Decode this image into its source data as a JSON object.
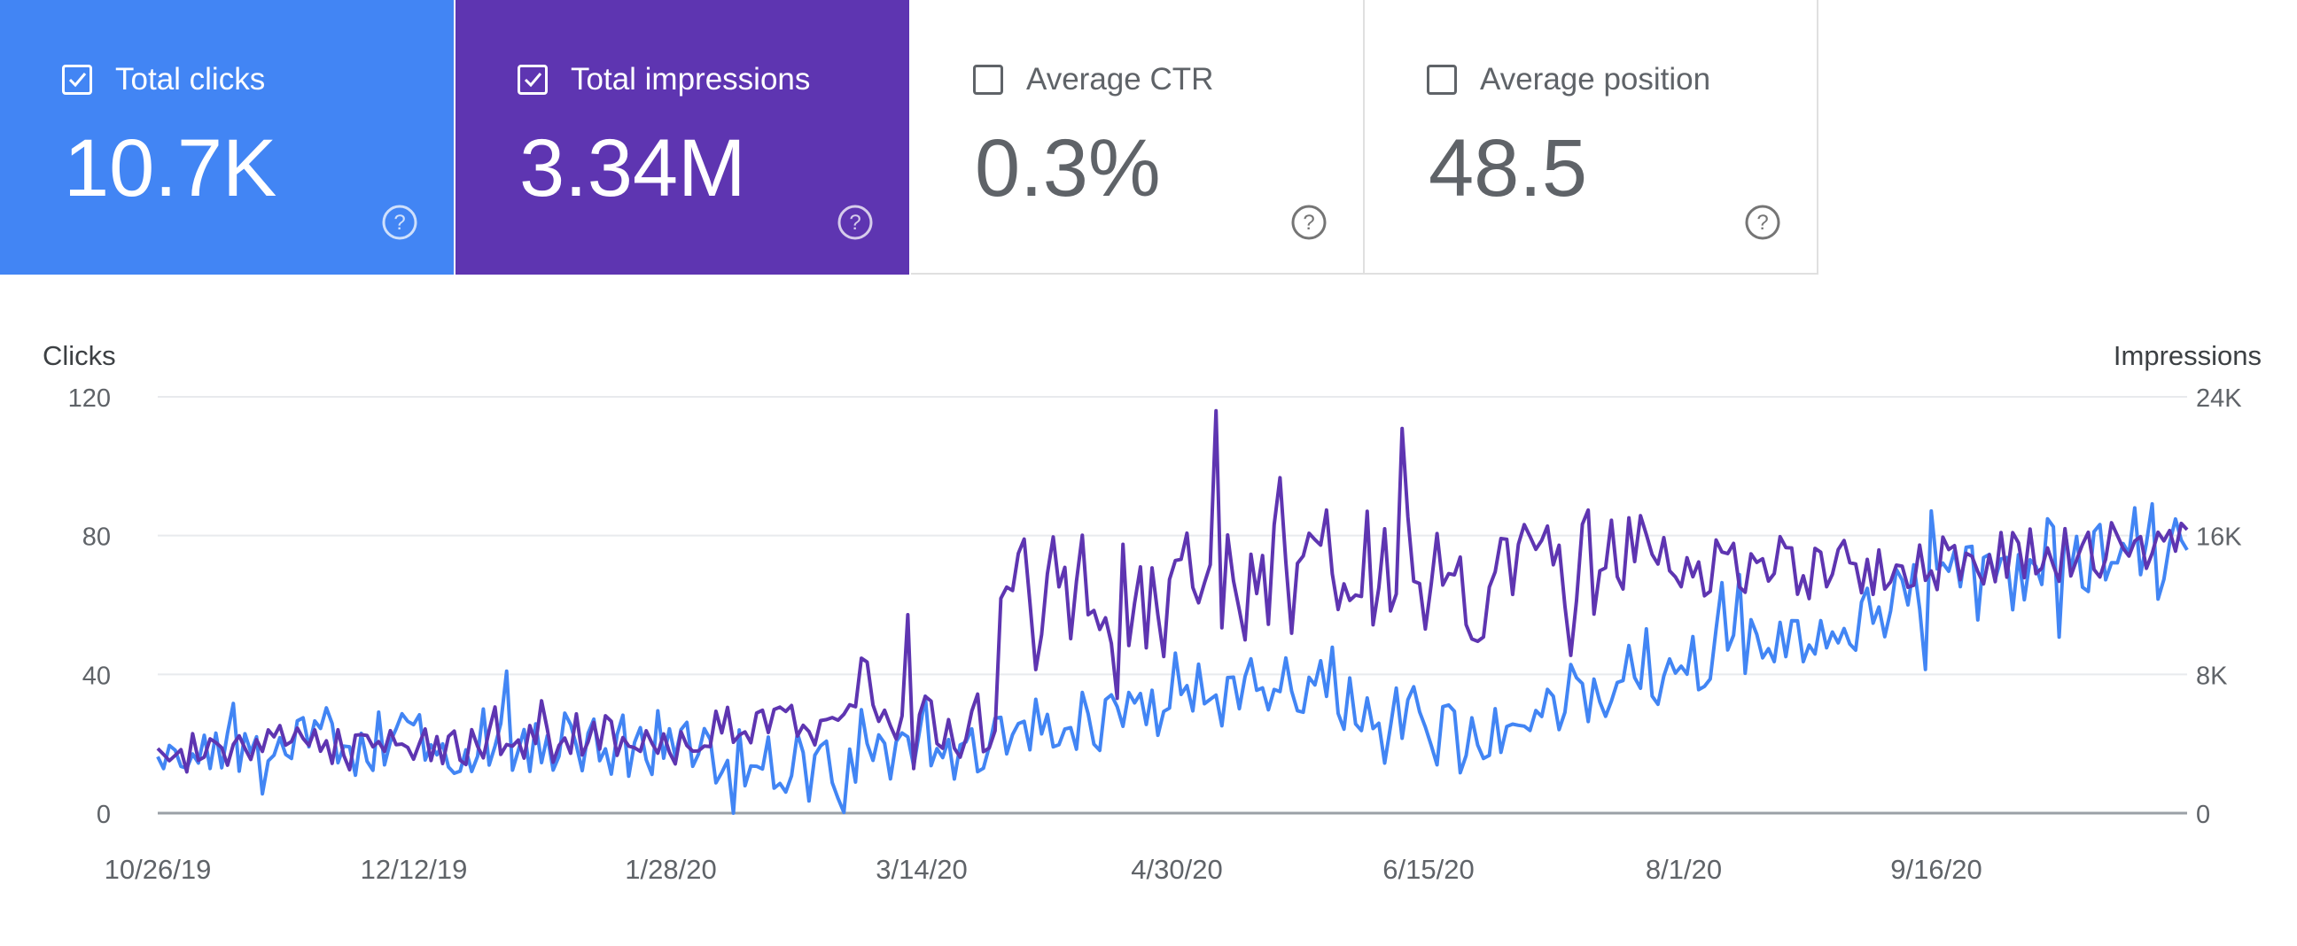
{
  "metrics": [
    {
      "label": "Total clicks",
      "value": "10.7K",
      "checked": true,
      "color": "#4285f4"
    },
    {
      "label": "Total impressions",
      "value": "3.34M",
      "checked": true,
      "color": "#5e35b1"
    },
    {
      "label": "Average CTR",
      "value": "0.3%",
      "checked": false,
      "color": "#ffffff"
    },
    {
      "label": "Average position",
      "value": "48.5",
      "checked": false,
      "color": "#ffffff"
    }
  ],
  "icons": {
    "checkbox": "check-icon",
    "help": "help-circle-icon"
  },
  "chart_data": {
    "type": "line",
    "x_tick_labels": [
      "10/26/19",
      "12/12/19",
      "1/28/20",
      "3/14/20",
      "4/30/20",
      "6/15/20",
      "8/1/20",
      "9/16/20"
    ],
    "ylabel": "Clicks",
    "y2label": "Impressions",
    "ylim": [
      0,
      120
    ],
    "y2lim": [
      0,
      24000
    ],
    "y_ticks": [
      "0",
      "40",
      "80",
      "120"
    ],
    "y2_ticks": [
      "0",
      "8K",
      "16K",
      "24K"
    ],
    "grid": true,
    "series": [
      {
        "name": "Clicks",
        "axis": "left",
        "color": "#4285f4",
        "segments": [
          {
            "points": 27,
            "from": 14,
            "to": 22,
            "spread": 7
          },
          {
            "points": 30,
            "from": 20,
            "to": 20,
            "spread": 10
          },
          {
            "points": 33,
            "from": 20,
            "to": 20,
            "spread": 10
          },
          {
            "points": 30,
            "from": 18,
            "to": 12,
            "spread": 10
          },
          {
            "points": 25,
            "from": 14,
            "to": 18,
            "spread": 8
          },
          {
            "points": 30,
            "from": 22,
            "to": 30,
            "spread": 10
          },
          {
            "points": 28,
            "from": 32,
            "to": 38,
            "spread": 10
          },
          {
            "points": 30,
            "from": 32,
            "to": 22,
            "spread": 8
          },
          {
            "points": 28,
            "from": 28,
            "to": 40,
            "spread": 8
          },
          {
            "points": 30,
            "from": 42,
            "to": 55,
            "spread": 10
          },
          {
            "points": 29,
            "from": 58,
            "to": 68,
            "spread": 12
          },
          {
            "points": 30,
            "from": 72,
            "to": 80,
            "spread": 12
          }
        ]
      },
      {
        "name": "Impressions",
        "axis": "right",
        "color": "#5e35b1",
        "segments": [
          {
            "points": 27,
            "from": 3000,
            "to": 4400,
            "spread": 900
          },
          {
            "points": 30,
            "from": 4400,
            "to": 3800,
            "spread": 1200
          },
          {
            "points": 33,
            "from": 3800,
            "to": 4400,
            "spread": 1200
          },
          {
            "points": 30,
            "from": 4800,
            "to": 5200,
            "spread": 1200
          },
          {
            "points": 25,
            "from": 7000,
            "to": 5000,
            "spread": 2400
          },
          {
            "points": 30,
            "from": 14000,
            "to": 12000,
            "spread": 3200
          },
          {
            "points": 28,
            "from": 12000,
            "to": 14400,
            "spread": 3600
          },
          {
            "points": 30,
            "from": 14000,
            "to": 13200,
            "spread": 3600
          },
          {
            "points": 28,
            "from": 14400,
            "to": 14400,
            "spread": 3200
          },
          {
            "points": 30,
            "from": 14400,
            "to": 14000,
            "spread": 2000
          },
          {
            "points": 29,
            "from": 14000,
            "to": 14800,
            "spread": 1600
          },
          {
            "points": 30,
            "from": 14800,
            "to": 15200,
            "spread": 1600
          }
        ],
        "peak": {
          "value": 23200
        }
      }
    ]
  }
}
